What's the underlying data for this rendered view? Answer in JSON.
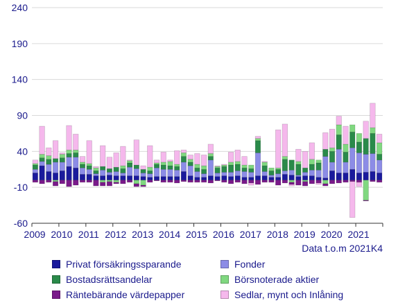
{
  "chart_data": {
    "type": "bar",
    "stacked": true,
    "note": "Data t.o.m 2021K4",
    "y_ticks": [
      240,
      190,
      140,
      90,
      40,
      -10,
      -60
    ],
    "ylim": [
      -60,
      240
    ],
    "x_ticks": [
      "2009",
      "2010",
      "2011",
      "2012",
      "2013",
      "2014",
      "2015",
      "2016",
      "2017",
      "2018",
      "2019",
      "2020",
      "2021"
    ],
    "grid": "horizontal",
    "legend_position": "bottom",
    "periods_per_year": 4,
    "n_periods": 52,
    "series": [
      {
        "name": "Privat försäkringssparande",
        "color": "#1a1a9c",
        "values": [
          10,
          20,
          12,
          10,
          13,
          19,
          17,
          8,
          8,
          6,
          6,
          7,
          6,
          6,
          6,
          6,
          5,
          4,
          5,
          5,
          5,
          5,
          12,
          6,
          4,
          4,
          6,
          5,
          6,
          5,
          6,
          4,
          4,
          6,
          6,
          4,
          4,
          8,
          7,
          5,
          6,
          6,
          4,
          3,
          13,
          10,
          10,
          15,
          10,
          11,
          12,
          10
        ]
      },
      {
        "name": "Fonder",
        "color": "#8c8ce6",
        "values": [
          5,
          6,
          10,
          15,
          12,
          13,
          15,
          9,
          7,
          3,
          8,
          4,
          6,
          4,
          12,
          10,
          5,
          5,
          12,
          10,
          10,
          9,
          13,
          14,
          8,
          5,
          22,
          5,
          5,
          6,
          7,
          8,
          7,
          32,
          6,
          3,
          5,
          5,
          7,
          2,
          5,
          8,
          10,
          30,
          12,
          33,
          15,
          30,
          28,
          25,
          25,
          18
        ]
      },
      {
        "name": "Bostadsrättsandelar",
        "color": "#2a8a4a",
        "values": [
          6,
          5,
          7,
          5,
          6,
          5,
          6,
          5,
          5,
          4,
          5,
          5,
          6,
          6,
          6,
          5,
          5,
          4,
          5,
          6,
          5,
          5,
          8,
          5,
          5,
          6,
          5,
          7,
          8,
          10,
          9,
          5,
          5,
          17,
          8,
          6,
          6,
          16,
          14,
          15,
          6,
          8,
          10,
          10,
          15,
          20,
          14,
          22,
          15,
          22,
          28,
          8
        ]
      },
      {
        "name": "Börsnoterade aktier",
        "color": "#80d880",
        "values": [
          2,
          5,
          5,
          -2,
          5,
          5,
          4,
          3,
          3,
          4,
          -3,
          -2,
          -3,
          4,
          3,
          -5,
          -7,
          5,
          2,
          4,
          6,
          3,
          5,
          4,
          5,
          5,
          4,
          2,
          2,
          4,
          4,
          4,
          5,
          3,
          5,
          4,
          2,
          4,
          -3,
          4,
          -2,
          7,
          4,
          -5,
          5,
          14,
          11,
          10,
          12,
          -28,
          8,
          16
        ]
      },
      {
        "name": "Räntebärande värdepapper",
        "color": "#7a1a8a",
        "values": [
          -3,
          -5,
          -3,
          -6,
          -5,
          -9,
          -7,
          -3,
          -3,
          -8,
          -5,
          -6,
          -2,
          -5,
          -3,
          -4,
          -2,
          -3,
          -1,
          -3,
          -3,
          -4,
          -2,
          -3,
          -3,
          -3,
          -4,
          -1,
          -3,
          -5,
          -3,
          -5,
          -4,
          -6,
          -3,
          -3,
          -7,
          -4,
          -3,
          -7,
          -6,
          -5,
          -4,
          -3,
          -5,
          -4,
          -3,
          -2,
          -3,
          -1,
          -2,
          -3
        ]
      },
      {
        "name": "Sedlar, mynt och Inlåning",
        "color": "#f5b8ec",
        "values": [
          5,
          39,
          11,
          25,
          2,
          34,
          22,
          8,
          32,
          2,
          29,
          16,
          20,
          27,
          1,
          35,
          5,
          30,
          4,
          14,
          2,
          19,
          4,
          6,
          15,
          15,
          13,
          1,
          1,
          14,
          16,
          12,
          -3,
          3,
          1,
          0,
          53,
          45,
          -2,
          17,
          23,
          23,
          -2,
          23,
          26,
          12,
          25,
          -50,
          -6,
          24,
          34,
          12
        ]
      }
    ]
  }
}
